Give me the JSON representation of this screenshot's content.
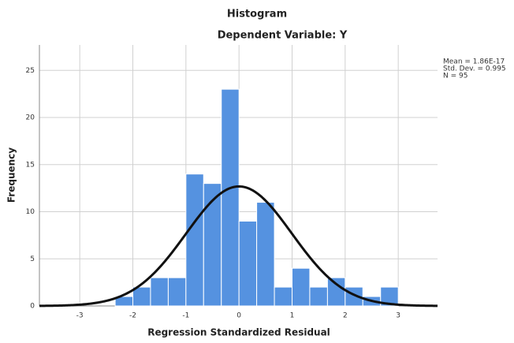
{
  "chart_data": {
    "type": "histogram",
    "title": "Histogram",
    "subtitle": "Dependent Variable: Y",
    "x_label": "Regression Standardized Residual",
    "y_label": "Frequency",
    "bins": [
      -2.333,
      -2,
      -1.667,
      -1.333,
      -1,
      -0.667,
      -0.333,
      0,
      0.333,
      0.667,
      1,
      1.333,
      1.667,
      2,
      2.333,
      2.667,
      3
    ],
    "values": [
      1,
      2,
      3,
      3,
      14,
      13,
      23,
      9,
      11,
      2,
      4,
      2,
      3,
      2,
      1,
      2
    ],
    "color": "#5592e0",
    "curve_color": "#111111",
    "xlim": [
      -3.76,
      3.74
    ],
    "xticks": [
      -3,
      -2,
      -1,
      0,
      1,
      2,
      3
    ],
    "ylim": [
      0,
      27.7
    ],
    "yticks": [
      0,
      5,
      10,
      15,
      20,
      25
    ],
    "grid": true,
    "stats": [
      {
        "value": 1.86e-17,
        "label": "Mean = 1.86E-17"
      },
      {
        "value": 0.995,
        "label": "Std. Dev. = 0.995"
      },
      {
        "value": 95,
        "label": "N = 95"
      }
    ]
  }
}
